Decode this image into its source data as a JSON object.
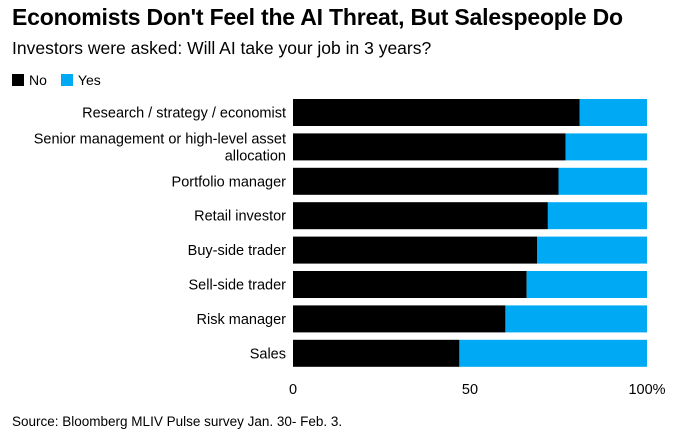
{
  "chart_data": {
    "type": "bar",
    "orientation": "horizontal",
    "stacked": true,
    "title": "Economists Don't Feel the AI Threat, But Salespeople Do",
    "subtitle": "Investors were asked: Will AI take your job in 3 years?",
    "categories": [
      "Research / strategy / economist",
      "Senior management or high-level asset allocation",
      "Portfolio manager",
      "Retail investor",
      "Buy-side trader",
      "Sell-side trader",
      "Risk manager",
      "Sales"
    ],
    "category_lines": [
      [
        "Research / strategy / economist"
      ],
      [
        "Senior management or high-level asset",
        "allocation"
      ],
      [
        "Portfolio manager"
      ],
      [
        "Retail investor"
      ],
      [
        "Buy-side trader"
      ],
      [
        "Sell-side trader"
      ],
      [
        "Risk manager"
      ],
      [
        "Sales"
      ]
    ],
    "series": [
      {
        "name": "No",
        "color": "#000000",
        "values": [
          81,
          77,
          75,
          72,
          69,
          66,
          60,
          47
        ]
      },
      {
        "name": "Yes",
        "color": "#00a9f4",
        "values": [
          19,
          23,
          25,
          28,
          31,
          34,
          40,
          53
        ]
      }
    ],
    "xlim": [
      0,
      100
    ],
    "xticks": [
      0,
      50,
      100
    ],
    "xtick_labels": [
      "0",
      "50",
      "100%"
    ],
    "legend_position": "top-left",
    "source": "Source: Bloomberg MLIV Pulse survey Jan. 30- Feb. 3."
  }
}
